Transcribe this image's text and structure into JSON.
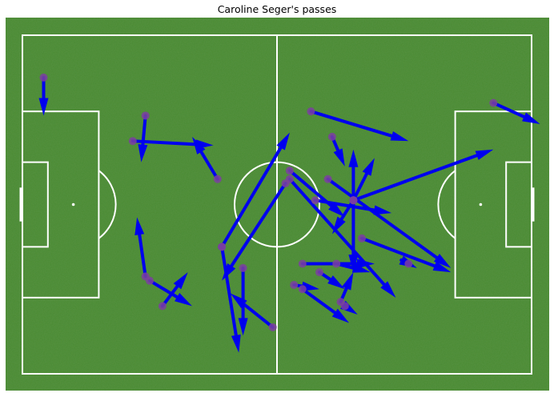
{
  "chart_data": {
    "type": "scatter",
    "title": "Caroline Seger's passes",
    "xlim": [
      0,
      120
    ],
    "ylim": [
      0,
      80
    ],
    "pitch": {
      "length": 120,
      "width": 80,
      "grass_color": "#4a8a32",
      "line_color": "#ffffff"
    },
    "marker_color": "#7b3fa0",
    "arrow_color": "#0000ee",
    "passes": [
      {
        "x": 5,
        "y": 10,
        "end_x": 5,
        "end_y": 19
      },
      {
        "x": 29,
        "y": 19,
        "end_x": 28,
        "end_y": 30
      },
      {
        "x": 26,
        "y": 25,
        "end_x": 45,
        "end_y": 26
      },
      {
        "x": 46,
        "y": 34,
        "end_x": 40,
        "end_y": 24
      },
      {
        "x": 29,
        "y": 57,
        "end_x": 27,
        "end_y": 43
      },
      {
        "x": 30,
        "y": 58,
        "end_x": 40,
        "end_y": 64
      },
      {
        "x": 33,
        "y": 64,
        "end_x": 39,
        "end_y": 56
      },
      {
        "x": 59,
        "y": 69,
        "end_x": 49,
        "end_y": 61
      },
      {
        "x": 52,
        "y": 55,
        "end_x": 52,
        "end_y": 71
      },
      {
        "x": 47,
        "y": 50,
        "end_x": 51,
        "end_y": 75
      },
      {
        "x": 47,
        "y": 50,
        "end_x": 63,
        "end_y": 23
      },
      {
        "x": 63,
        "y": 34,
        "end_x": 88,
        "end_y": 62
      },
      {
        "x": 62,
        "y": 35,
        "end_x": 47,
        "end_y": 58
      },
      {
        "x": 63,
        "y": 32,
        "end_x": 76,
        "end_y": 43
      },
      {
        "x": 66,
        "y": 60,
        "end_x": 77,
        "end_y": 68
      },
      {
        "x": 64,
        "y": 59,
        "end_x": 70,
        "end_y": 60
      },
      {
        "x": 70,
        "y": 56,
        "end_x": 76,
        "end_y": 60
      },
      {
        "x": 66,
        "y": 54,
        "end_x": 83,
        "end_y": 54
      },
      {
        "x": 74,
        "y": 54,
        "end_x": 82,
        "end_y": 56
      },
      {
        "x": 75,
        "y": 63,
        "end_x": 78,
        "end_y": 56
      },
      {
        "x": 76,
        "y": 64,
        "end_x": 79,
        "end_y": 66
      },
      {
        "x": 80,
        "y": 48,
        "end_x": 101,
        "end_y": 56
      },
      {
        "x": 69,
        "y": 39,
        "end_x": 87,
        "end_y": 42
      },
      {
        "x": 72,
        "y": 34,
        "end_x": 101,
        "end_y": 55
      },
      {
        "x": 78,
        "y": 39,
        "end_x": 73,
        "end_y": 47
      },
      {
        "x": 78,
        "y": 39,
        "end_x": 78,
        "end_y": 27
      },
      {
        "x": 78,
        "y": 39,
        "end_x": 83,
        "end_y": 29
      },
      {
        "x": 78,
        "y": 39,
        "end_x": 111,
        "end_y": 27
      },
      {
        "x": 78,
        "y": 39,
        "end_x": 78,
        "end_y": 56
      },
      {
        "x": 73,
        "y": 24,
        "end_x": 76,
        "end_y": 31
      },
      {
        "x": 68,
        "y": 18,
        "end_x": 91,
        "end_y": 25
      },
      {
        "x": 91,
        "y": 54,
        "end_x": 93,
        "end_y": 55
      },
      {
        "x": 111,
        "y": 16,
        "end_x": 122,
        "end_y": 21
      }
    ]
  }
}
